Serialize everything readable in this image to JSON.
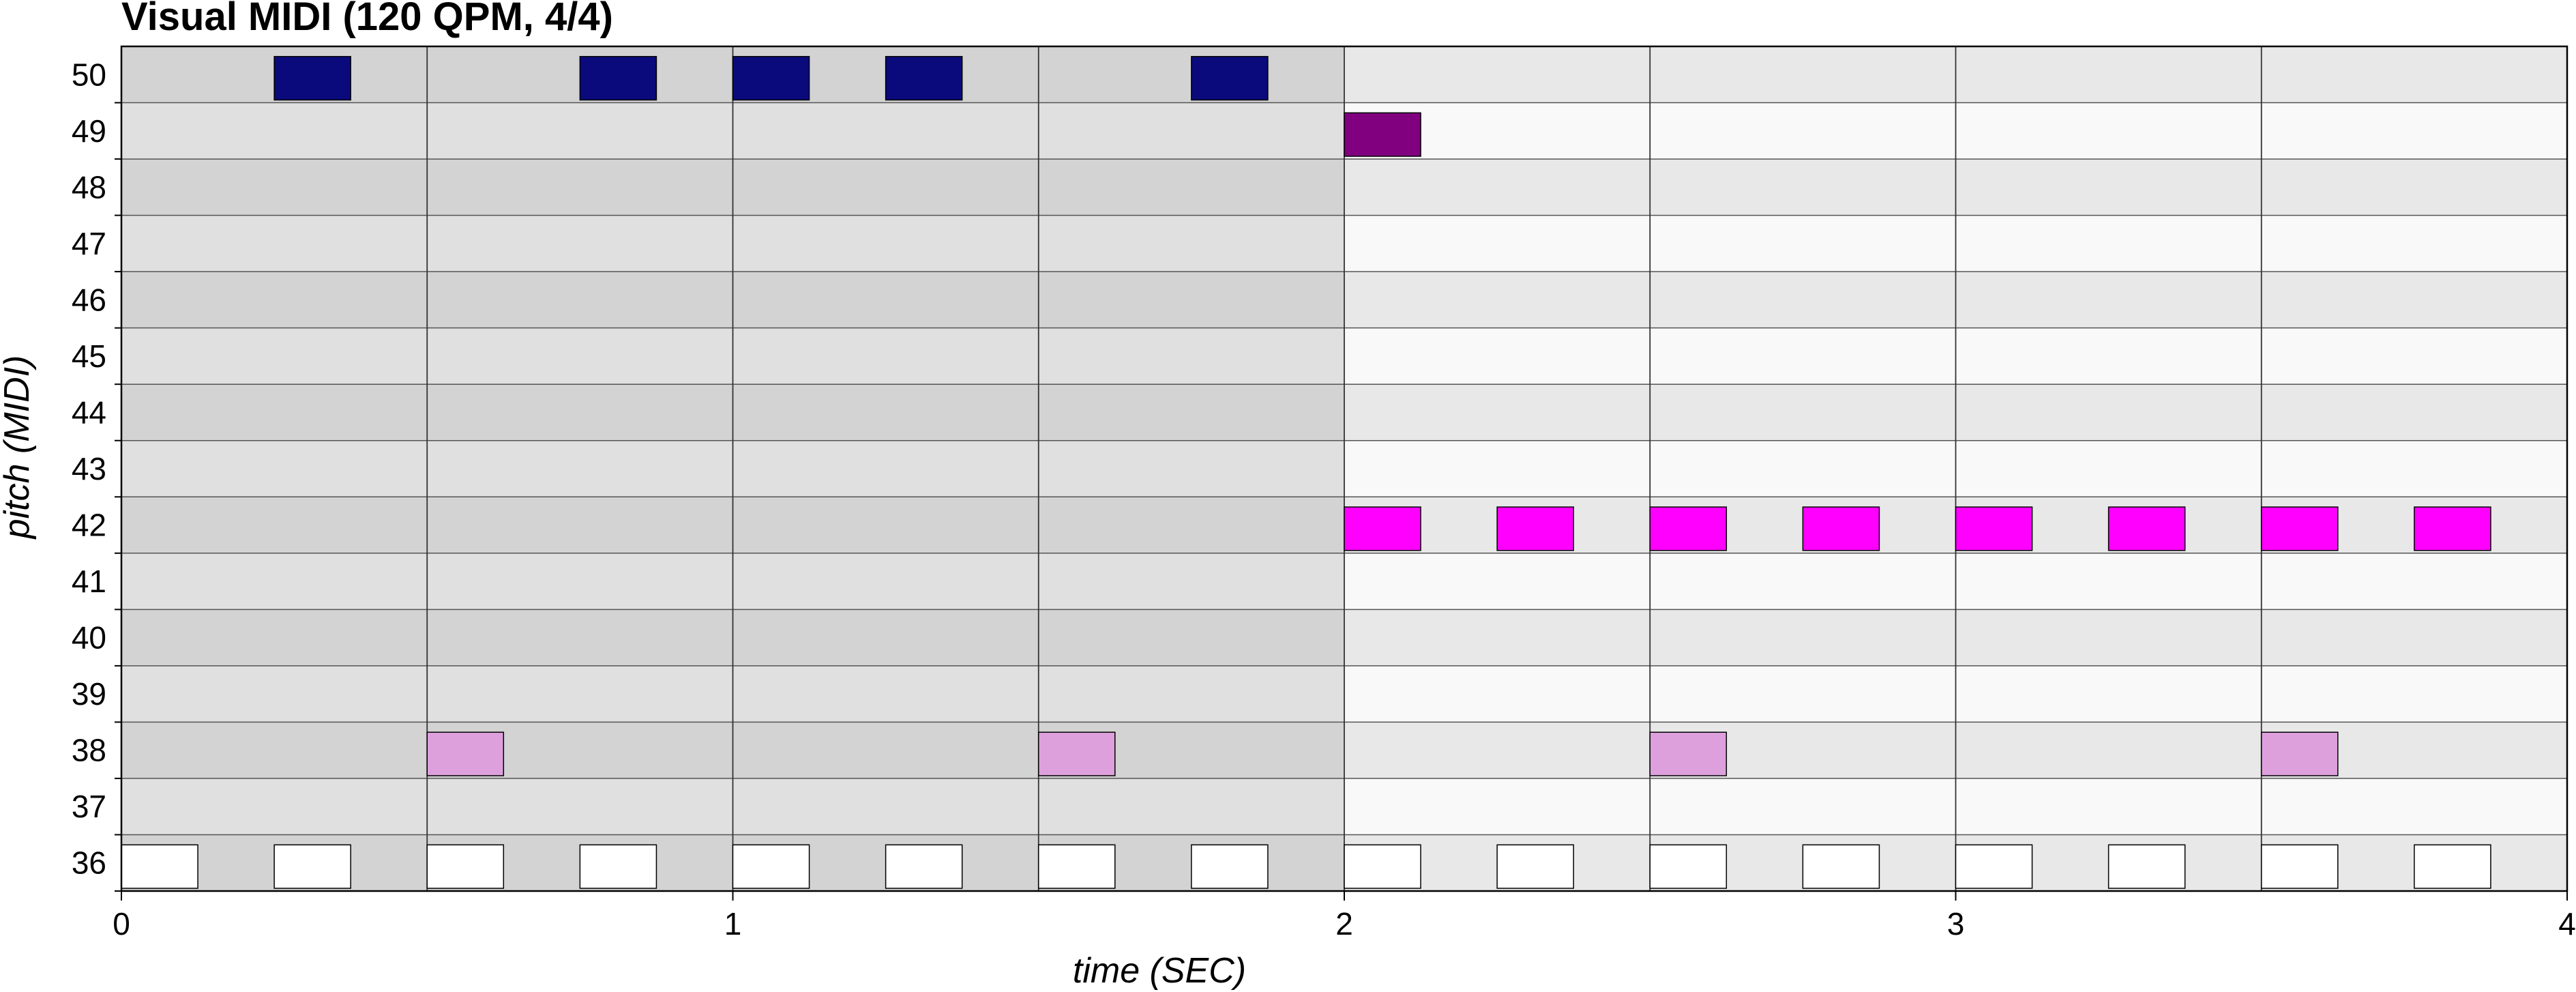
{
  "chart_data": {
    "type": "piano-roll",
    "title": "Visual MIDI (120 QPM, 4/4)",
    "xlabel": "time (SEC)",
    "ylabel": "pitch (MIDI)",
    "xlim": [
      0,
      4
    ],
    "ylim": [
      36,
      50
    ],
    "xticks": [
      "0",
      "1",
      "2",
      "3",
      "4"
    ],
    "yticks": [
      "50",
      "49",
      "48",
      "47",
      "46",
      "45",
      "44",
      "43",
      "42",
      "41",
      "40",
      "39",
      "38",
      "37",
      "36"
    ],
    "beat_lines": [
      0.5,
      1,
      1.5,
      2,
      2.5,
      3,
      3.5
    ],
    "shaded_region": [
      0,
      2
    ],
    "grid": true,
    "notes": [
      {
        "pitch": 50,
        "start": 0.25,
        "end": 0.375,
        "color": "#0a0a7d"
      },
      {
        "pitch": 50,
        "start": 0.75,
        "end": 0.875,
        "color": "#0a0a7d"
      },
      {
        "pitch": 50,
        "start": 1.0,
        "end": 1.125,
        "color": "#0a0a7d"
      },
      {
        "pitch": 50,
        "start": 1.25,
        "end": 1.375,
        "color": "#0a0a7d"
      },
      {
        "pitch": 50,
        "start": 1.75,
        "end": 1.875,
        "color": "#0a0a7d"
      },
      {
        "pitch": 49,
        "start": 2.0,
        "end": 2.125,
        "color": "#800080"
      },
      {
        "pitch": 42,
        "start": 2.0,
        "end": 2.125,
        "color": "#ff00ff"
      },
      {
        "pitch": 42,
        "start": 2.25,
        "end": 2.375,
        "color": "#ff00ff"
      },
      {
        "pitch": 42,
        "start": 2.5,
        "end": 2.625,
        "color": "#ff00ff"
      },
      {
        "pitch": 42,
        "start": 2.75,
        "end": 2.875,
        "color": "#ff00ff"
      },
      {
        "pitch": 42,
        "start": 3.0,
        "end": 3.125,
        "color": "#ff00ff"
      },
      {
        "pitch": 42,
        "start": 3.25,
        "end": 3.375,
        "color": "#ff00ff"
      },
      {
        "pitch": 42,
        "start": 3.5,
        "end": 3.625,
        "color": "#ff00ff"
      },
      {
        "pitch": 42,
        "start": 3.75,
        "end": 3.875,
        "color": "#ff00ff"
      },
      {
        "pitch": 38,
        "start": 0.5,
        "end": 0.625,
        "color": "#dda0dd"
      },
      {
        "pitch": 38,
        "start": 1.5,
        "end": 1.625,
        "color": "#dda0dd"
      },
      {
        "pitch": 38,
        "start": 2.5,
        "end": 2.625,
        "color": "#dda0dd"
      },
      {
        "pitch": 38,
        "start": 3.5,
        "end": 3.625,
        "color": "#dda0dd"
      },
      {
        "pitch": 36,
        "start": 0.0,
        "end": 0.125,
        "color": "#ffffff"
      },
      {
        "pitch": 36,
        "start": 0.25,
        "end": 0.375,
        "color": "#ffffff"
      },
      {
        "pitch": 36,
        "start": 0.5,
        "end": 0.625,
        "color": "#ffffff"
      },
      {
        "pitch": 36,
        "start": 0.75,
        "end": 0.875,
        "color": "#ffffff"
      },
      {
        "pitch": 36,
        "start": 1.0,
        "end": 1.125,
        "color": "#ffffff"
      },
      {
        "pitch": 36,
        "start": 1.25,
        "end": 1.375,
        "color": "#ffffff"
      },
      {
        "pitch": 36,
        "start": 1.5,
        "end": 1.625,
        "color": "#ffffff"
      },
      {
        "pitch": 36,
        "start": 1.75,
        "end": 1.875,
        "color": "#ffffff"
      },
      {
        "pitch": 36,
        "start": 2.0,
        "end": 2.125,
        "color": "#ffffff"
      },
      {
        "pitch": 36,
        "start": 2.25,
        "end": 2.375,
        "color": "#ffffff"
      },
      {
        "pitch": 36,
        "start": 2.5,
        "end": 2.625,
        "color": "#ffffff"
      },
      {
        "pitch": 36,
        "start": 2.75,
        "end": 2.875,
        "color": "#ffffff"
      },
      {
        "pitch": 36,
        "start": 3.0,
        "end": 3.125,
        "color": "#ffffff"
      },
      {
        "pitch": 36,
        "start": 3.25,
        "end": 3.375,
        "color": "#ffffff"
      },
      {
        "pitch": 36,
        "start": 3.5,
        "end": 3.625,
        "color": "#ffffff"
      },
      {
        "pitch": 36,
        "start": 3.75,
        "end": 3.875,
        "color": "#ffffff"
      }
    ],
    "colors": {
      "row_dark_shaded": "#d3d3d3",
      "row_light_shaded": "#e0e0e0",
      "row_dark_plain": "#e8e8e8",
      "row_light_plain": "#f9f9f9",
      "grid_line": "#555555"
    }
  }
}
